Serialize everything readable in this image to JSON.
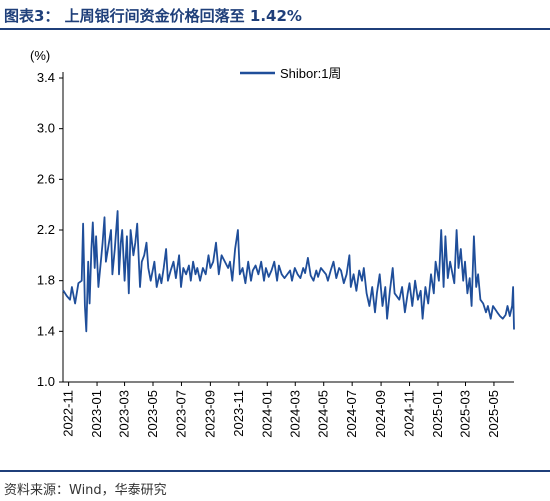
{
  "title": "图表3：  上周银行间资金价格回落至 1.42%",
  "source": "资料来源：Wind，华泰研究",
  "colors": {
    "series": "#1f4e9a",
    "accent": "#1f3f7a"
  },
  "chart_data": {
    "type": "line",
    "yunit": "(%)",
    "ylim": [
      1.0,
      3.4
    ],
    "yticks": [
      "1.0",
      "1.4",
      "1.8",
      "2.2",
      "2.6",
      "3.0",
      "3.4"
    ],
    "xlim": [
      "2022-10-20",
      "2025-06-13"
    ],
    "xticks": [
      "2022-11",
      "2023-01",
      "2023-03",
      "2023-05",
      "2023-07",
      "2023-09",
      "2023-11",
      "2024-01",
      "2024-03",
      "2024-05",
      "2024-07",
      "2024-09",
      "2024-11",
      "2025-01",
      "2025-03",
      "2025-05"
    ],
    "grid": false,
    "legend_position": "top-right",
    "series": [
      {
        "name": "Shibor:1周",
        "points": [
          [
            "2022-10-21",
            1.72
          ],
          [
            "2022-10-28",
            1.68
          ],
          [
            "2022-11-04",
            1.65
          ],
          [
            "2022-11-08",
            1.75
          ],
          [
            "2022-11-15",
            1.62
          ],
          [
            "2022-11-22",
            1.78
          ],
          [
            "2022-11-29",
            1.8
          ],
          [
            "2022-12-02",
            2.25
          ],
          [
            "2022-12-06",
            1.6
          ],
          [
            "2022-12-09",
            1.4
          ],
          [
            "2022-12-13",
            1.95
          ],
          [
            "2022-12-16",
            1.62
          ],
          [
            "2022-12-20",
            2.05
          ],
          [
            "2022-12-23",
            2.26
          ],
          [
            "2022-12-27",
            1.9
          ],
          [
            "2022-12-30",
            2.15
          ],
          [
            "2023-01-04",
            1.75
          ],
          [
            "2023-01-10",
            1.98
          ],
          [
            "2023-01-13",
            2.1
          ],
          [
            "2023-01-17",
            2.3
          ],
          [
            "2023-01-20",
            1.95
          ],
          [
            "2023-01-31",
            2.2
          ],
          [
            "2023-02-03",
            1.85
          ],
          [
            "2023-02-08",
            2.05
          ],
          [
            "2023-02-14",
            2.35
          ],
          [
            "2023-02-17",
            1.85
          ],
          [
            "2023-02-21",
            2.1
          ],
          [
            "2023-02-24",
            2.2
          ],
          [
            "2023-03-01",
            1.8
          ],
          [
            "2023-03-06",
            2.15
          ],
          [
            "2023-03-10",
            1.7
          ],
          [
            "2023-03-14",
            2.2
          ],
          [
            "2023-03-20",
            2.0
          ],
          [
            "2023-03-24",
            2.1
          ],
          [
            "2023-03-28",
            2.25
          ],
          [
            "2023-04-03",
            1.75
          ],
          [
            "2023-04-07",
            1.95
          ],
          [
            "2023-04-12",
            2.0
          ],
          [
            "2023-04-17",
            2.1
          ],
          [
            "2023-04-21",
            1.9
          ],
          [
            "2023-04-26",
            1.8
          ],
          [
            "2023-05-04",
            1.95
          ],
          [
            "2023-05-09",
            1.75
          ],
          [
            "2023-05-15",
            1.85
          ],
          [
            "2023-05-19",
            1.78
          ],
          [
            "2023-05-24",
            1.9
          ],
          [
            "2023-05-29",
            2.05
          ],
          [
            "2023-06-02",
            1.8
          ],
          [
            "2023-06-08",
            1.88
          ],
          [
            "2023-06-14",
            1.95
          ],
          [
            "2023-06-19",
            1.82
          ],
          [
            "2023-06-26",
            2.0
          ],
          [
            "2023-06-30",
            1.75
          ],
          [
            "2023-07-05",
            1.9
          ],
          [
            "2023-07-11",
            1.85
          ],
          [
            "2023-07-17",
            1.92
          ],
          [
            "2023-07-21",
            1.8
          ],
          [
            "2023-07-26",
            1.95
          ],
          [
            "2023-07-31",
            1.85
          ],
          [
            "2023-08-04",
            1.9
          ],
          [
            "2023-08-10",
            1.8
          ],
          [
            "2023-08-16",
            1.9
          ],
          [
            "2023-08-22",
            1.85
          ],
          [
            "2023-08-28",
            2.0
          ],
          [
            "2023-09-01",
            1.9
          ],
          [
            "2023-09-07",
            1.95
          ],
          [
            "2023-09-13",
            2.1
          ],
          [
            "2023-09-19",
            1.85
          ],
          [
            "2023-09-25",
            2.0
          ],
          [
            "2023-10-09",
            1.9
          ],
          [
            "2023-10-13",
            1.95
          ],
          [
            "2023-10-18",
            1.8
          ],
          [
            "2023-10-24",
            2.05
          ],
          [
            "2023-10-30",
            2.2
          ],
          [
            "2023-11-03",
            1.85
          ],
          [
            "2023-11-09",
            1.9
          ],
          [
            "2023-11-15",
            1.78
          ],
          [
            "2023-11-21",
            1.95
          ],
          [
            "2023-11-27",
            1.8
          ],
          [
            "2023-12-01",
            1.88
          ],
          [
            "2023-12-07",
            1.92
          ],
          [
            "2023-12-13",
            1.85
          ],
          [
            "2023-12-19",
            1.95
          ],
          [
            "2023-12-25",
            1.8
          ],
          [
            "2023-12-29",
            1.9
          ],
          [
            "2024-01-04",
            1.83
          ],
          [
            "2024-01-10",
            1.88
          ],
          [
            "2024-01-16",
            1.95
          ],
          [
            "2024-01-22",
            1.8
          ],
          [
            "2024-01-26",
            1.92
          ],
          [
            "2024-02-01",
            1.85
          ],
          [
            "2024-02-07",
            1.82
          ],
          [
            "2024-02-19",
            1.88
          ],
          [
            "2024-02-23",
            1.8
          ],
          [
            "2024-02-29",
            1.9
          ],
          [
            "2024-03-06",
            1.85
          ],
          [
            "2024-03-12",
            1.82
          ],
          [
            "2024-03-18",
            1.9
          ],
          [
            "2024-03-22",
            1.86
          ],
          [
            "2024-03-28",
            1.98
          ],
          [
            "2024-04-03",
            1.84
          ],
          [
            "2024-04-09",
            1.8
          ],
          [
            "2024-04-15",
            1.88
          ],
          [
            "2024-04-19",
            1.83
          ],
          [
            "2024-04-25",
            1.9
          ],
          [
            "2024-05-06",
            1.85
          ],
          [
            "2024-05-10",
            1.8
          ],
          [
            "2024-05-16",
            1.88
          ],
          [
            "2024-05-22",
            1.95
          ],
          [
            "2024-05-28",
            1.82
          ],
          [
            "2024-06-03",
            1.9
          ],
          [
            "2024-06-07",
            1.88
          ],
          [
            "2024-06-13",
            1.78
          ],
          [
            "2024-06-19",
            1.85
          ],
          [
            "2024-06-25",
            2.0
          ],
          [
            "2024-06-28",
            1.75
          ],
          [
            "2024-07-04",
            1.85
          ],
          [
            "2024-07-10",
            1.72
          ],
          [
            "2024-07-16",
            1.88
          ],
          [
            "2024-07-22",
            1.8
          ],
          [
            "2024-07-26",
            1.9
          ],
          [
            "2024-08-01",
            1.7
          ],
          [
            "2024-08-07",
            1.6
          ],
          [
            "2024-08-13",
            1.75
          ],
          [
            "2024-08-19",
            1.55
          ],
          [
            "2024-08-23",
            1.7
          ],
          [
            "2024-08-29",
            1.85
          ],
          [
            "2024-09-04",
            1.6
          ],
          [
            "2024-09-10",
            1.75
          ],
          [
            "2024-09-14",
            1.5
          ],
          [
            "2024-09-20",
            1.72
          ],
          [
            "2024-09-26",
            1.9
          ],
          [
            "2024-09-30",
            1.7
          ],
          [
            "2024-10-10",
            1.65
          ],
          [
            "2024-10-16",
            1.75
          ],
          [
            "2024-10-22",
            1.55
          ],
          [
            "2024-10-28",
            1.7
          ],
          [
            "2024-11-01",
            1.78
          ],
          [
            "2024-11-07",
            1.6
          ],
          [
            "2024-11-13",
            1.8
          ],
          [
            "2024-11-19",
            1.65
          ],
          [
            "2024-11-25",
            1.72
          ],
          [
            "2024-11-29",
            1.5
          ],
          [
            "2024-12-05",
            1.75
          ],
          [
            "2024-12-11",
            1.62
          ],
          [
            "2024-12-17",
            1.85
          ],
          [
            "2024-12-23",
            1.7
          ],
          [
            "2024-12-27",
            1.95
          ],
          [
            "2025-01-03",
            1.8
          ],
          [
            "2025-01-08",
            2.2
          ],
          [
            "2025-01-13",
            1.75
          ],
          [
            "2025-01-17",
            2.15
          ],
          [
            "2025-01-22",
            1.82
          ],
          [
            "2025-01-27",
            1.95
          ],
          [
            "2025-02-05",
            1.78
          ],
          [
            "2025-02-10",
            2.2
          ],
          [
            "2025-02-14",
            1.9
          ],
          [
            "2025-02-19",
            2.05
          ],
          [
            "2025-02-24",
            1.8
          ],
          [
            "2025-02-28",
            1.95
          ],
          [
            "2025-03-05",
            1.7
          ],
          [
            "2025-03-10",
            1.82
          ],
          [
            "2025-03-14",
            1.6
          ],
          [
            "2025-03-19",
            2.15
          ],
          [
            "2025-03-24",
            1.75
          ],
          [
            "2025-03-28",
            1.85
          ],
          [
            "2025-04-02",
            1.65
          ],
          [
            "2025-04-08",
            1.62
          ],
          [
            "2025-04-14",
            1.55
          ],
          [
            "2025-04-18",
            1.6
          ],
          [
            "2025-04-24",
            1.5
          ],
          [
            "2025-04-29",
            1.6
          ],
          [
            "2025-05-08",
            1.55
          ],
          [
            "2025-05-14",
            1.52
          ],
          [
            "2025-05-20",
            1.5
          ],
          [
            "2025-05-26",
            1.53
          ],
          [
            "2025-05-30",
            1.6
          ],
          [
            "2025-06-04",
            1.52
          ],
          [
            "2025-06-09",
            1.6
          ],
          [
            "2025-06-11",
            1.75
          ],
          [
            "2025-06-13",
            1.42
          ]
        ]
      }
    ]
  }
}
